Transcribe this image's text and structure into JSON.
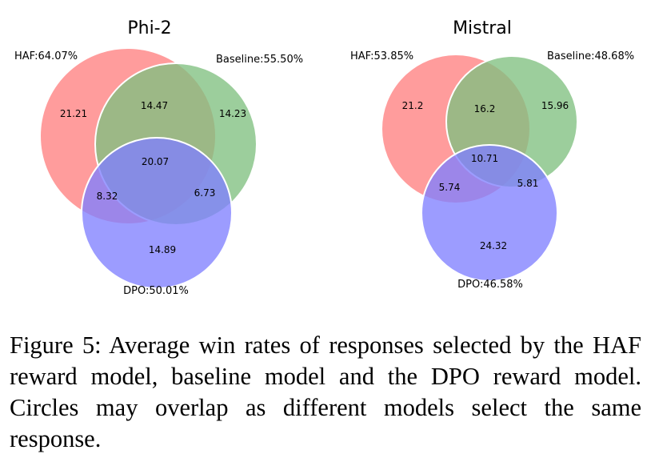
{
  "panels": [
    {
      "title": "Phi-2",
      "sets": {
        "haf": {
          "label": "HAF:64.07%",
          "color": "#ff8080"
        },
        "baseline": {
          "label": "Baseline:55.50%",
          "color": "#80c080"
        },
        "dpo": {
          "label": "DPO:50.01%",
          "color": "#8080ff"
        }
      },
      "regions": {
        "haf_only": "21.21",
        "baseline_only": "14.23",
        "dpo_only": "14.89",
        "haf_baseline": "14.47",
        "haf_dpo": "8.32",
        "baseline_dpo": "6.73",
        "all": "20.07"
      }
    },
    {
      "title": "Mistral",
      "sets": {
        "haf": {
          "label": "HAF:53.85%",
          "color": "#ff8080"
        },
        "baseline": {
          "label": "Baseline:48.68%",
          "color": "#80c080"
        },
        "dpo": {
          "label": "DPO:46.58%",
          "color": "#8080ff"
        }
      },
      "regions": {
        "haf_only": "21.2",
        "baseline_only": "15.96",
        "dpo_only": "24.32",
        "haf_baseline": "16.2",
        "haf_dpo": "5.74",
        "baseline_dpo": "5.81",
        "all": "10.71"
      }
    }
  ],
  "caption": "Figure 5: Average win rates of responses selected by the HAF reward model, baseline model and the DPO reward model. Circles may overlap as different models select the same response."
}
